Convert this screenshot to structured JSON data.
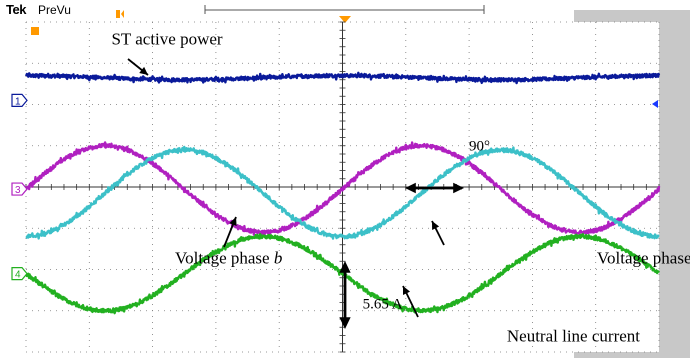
{
  "header": {
    "brand": "Tek",
    "mode": "PreVu"
  },
  "colors": {
    "background": "#ffffff",
    "screen": "#ffffff",
    "side_panel": "#c8c8c8",
    "grid": "#7a7a7a",
    "trigger_marker": "#ff9900",
    "ch1": "#0a1a9a",
    "ch2": "#3cc0c8",
    "ch3": "#b020c0",
    "ch4": "#22b020"
  },
  "channel_markers": [
    {
      "label": "1",
      "color": "#0a1a9a"
    },
    {
      "label": "3",
      "color": "#b020c0"
    },
    {
      "label": "4",
      "color": "#22b020"
    }
  ],
  "chart_data": {
    "type": "line",
    "title": "",
    "xlabel": "",
    "ylabel": "",
    "grid": true,
    "xlim": [
      0,
      10
    ],
    "ylim": [
      -4,
      4
    ],
    "divisions": {
      "x": 10,
      "y": 8
    },
    "series": [
      {
        "name": "ST active power",
        "color": "#0a1a9a",
        "kind": "flat",
        "offset": 2.65,
        "amplitude": 0.05,
        "period": 5.0,
        "phase": 1.57
      },
      {
        "name": "Voltage phase b",
        "color": "#b020c0",
        "kind": "sine",
        "offset": -0.05,
        "amplitude": 1.05,
        "period": 5.0,
        "phase": 0.0
      },
      {
        "name": "Voltage phase c",
        "color": "#3cc0c8",
        "kind": "sine",
        "offset": -0.15,
        "amplitude": 1.05,
        "period": 5.0,
        "phase": -1.57
      },
      {
        "name": "Neutral line current",
        "color": "#22b020",
        "kind": "sine",
        "offset": -2.1,
        "amplitude": 0.9,
        "period": 5.0,
        "phase": 3.14
      }
    ],
    "annotations": [
      {
        "text": "ST active power",
        "x": 1.35,
        "y": 3.45
      },
      {
        "text": "Voltage phase b",
        "x": 4.05,
        "y": -1.85
      },
      {
        "text": "Voltage phase c",
        "x": 10.7,
        "y": -1.85
      },
      {
        "text": "Neutral line current",
        "x": 9.7,
        "y": -3.75
      },
      {
        "text": "90°",
        "x": 7.33,
        "y": 0.88
      },
      {
        "text": "5.65 A",
        "x": 5.95,
        "y": -2.95
      }
    ]
  }
}
